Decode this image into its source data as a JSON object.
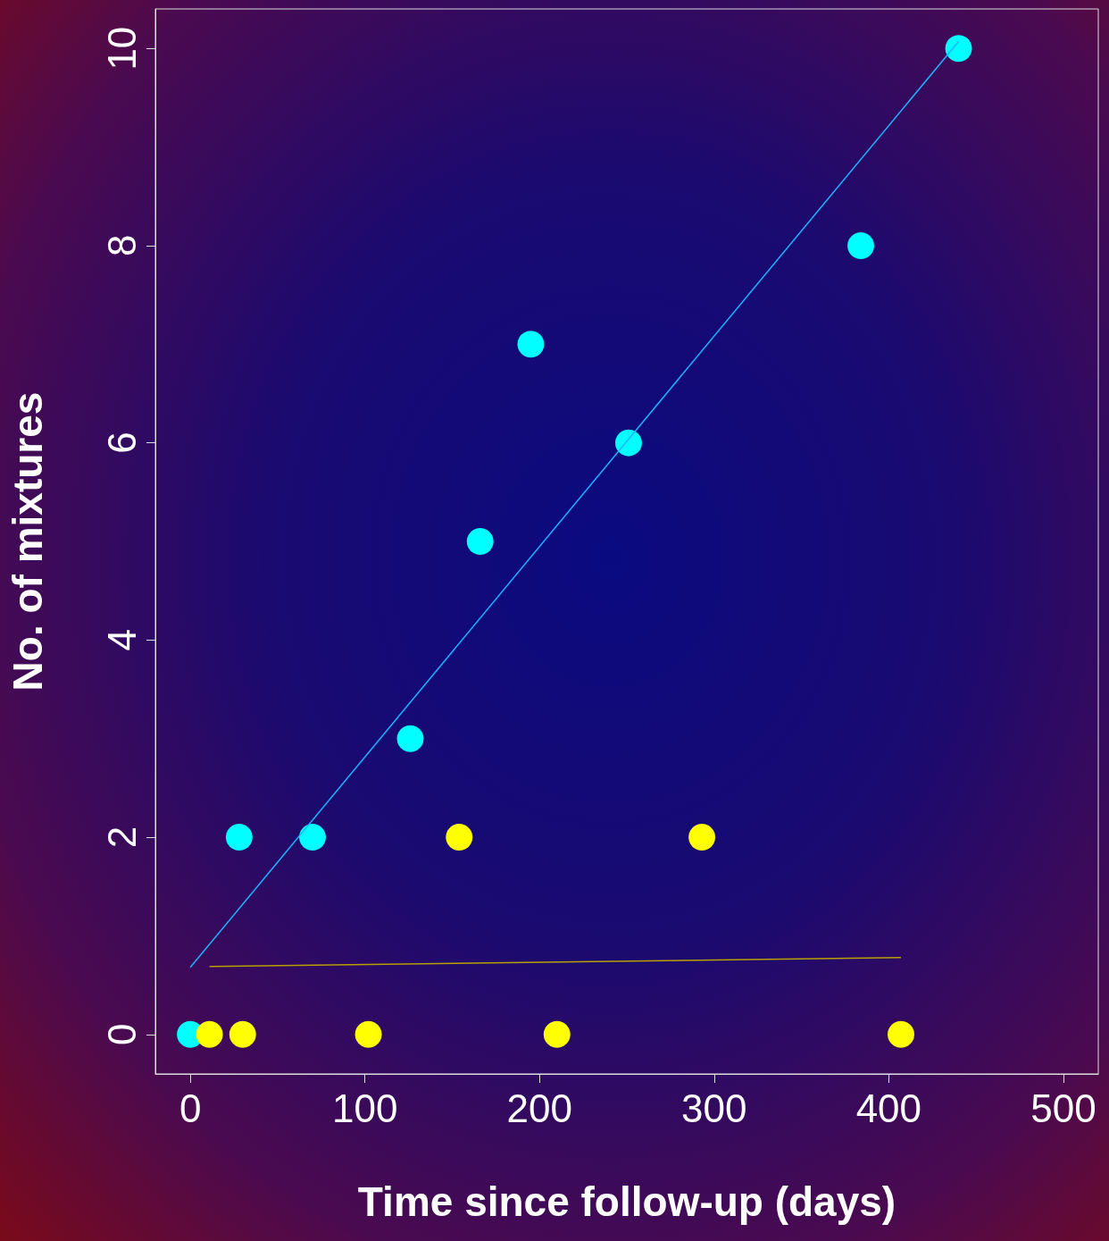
{
  "chart_data": {
    "type": "scatter",
    "xlabel": "Time since follow-up (days)",
    "ylabel": "No. of mixtures",
    "xlim": [
      -20,
      520
    ],
    "xticks": [
      0,
      100,
      200,
      300,
      400,
      500
    ],
    "ylim": [
      -0.4,
      10.4
    ],
    "yticks": [
      0,
      2,
      4,
      6,
      8,
      10
    ],
    "grid": false,
    "marker": "circle",
    "series": [
      {
        "color": "#00ffff",
        "x": [
          0,
          28,
          70,
          126,
          166,
          195,
          251,
          384,
          440
        ],
        "values": [
          0,
          2,
          2,
          3,
          5,
          7,
          6,
          8,
          10
        ]
      },
      {
        "color": "#ffff00",
        "x": [
          11,
          30,
          102,
          154,
          210,
          293,
          407
        ],
        "values": [
          0,
          0,
          0,
          2,
          0,
          2,
          0
        ]
      },
      {
        "type": "line",
        "marker": "none",
        "color": "#1eb4ff",
        "x": [
          0,
          440
        ],
        "values": [
          0.68,
          10.07
        ]
      },
      {
        "type": "line",
        "marker": "none",
        "color": "#b8a000",
        "x": [
          11,
          407
        ],
        "values": [
          0.69,
          0.78
        ]
      }
    ]
  }
}
